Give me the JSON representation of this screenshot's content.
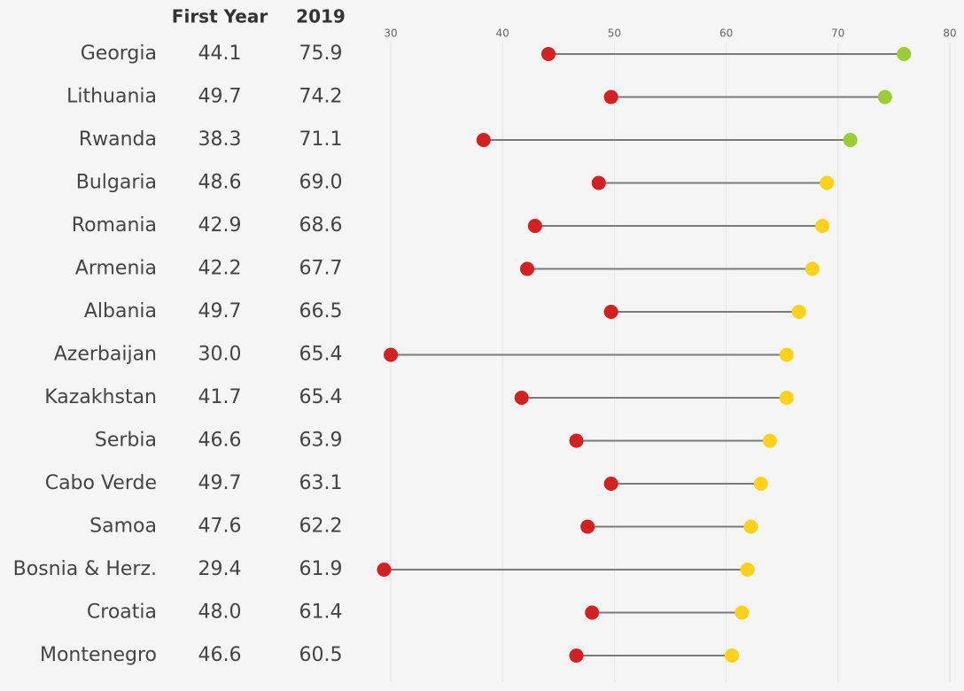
{
  "chart_data": {
    "type": "dumbbell",
    "categories": [
      "Georgia",
      "Lithuania",
      "Rwanda",
      "Bulgaria",
      "Romania",
      "Armenia",
      "Albania",
      "Azerbaijan",
      "Kazakhstan",
      "Serbia",
      "Cabo Verde",
      "Samoa",
      "Bosnia & Herz.",
      "Croatia",
      "Montenegro"
    ],
    "series": [
      {
        "name": "First Year",
        "color": "#d42020",
        "values": [
          44.1,
          49.7,
          38.3,
          48.6,
          42.9,
          42.2,
          49.7,
          30.0,
          41.7,
          46.6,
          49.7,
          47.6,
          29.4,
          48.0,
          46.6
        ],
        "value_labels": [
          "44.1",
          "49.7",
          "38.3",
          "48.6",
          "42.9",
          "42.2",
          "49.7",
          "30.0",
          "41.7",
          "46.6",
          "49.7",
          "47.6",
          "29.4",
          "48.0",
          "46.6"
        ]
      },
      {
        "name": "2019",
        "colors": [
          "#9acd32",
          "#9acd32",
          "#9acd32",
          "#ffd21a",
          "#ffd21a",
          "#ffd21a",
          "#ffd21a",
          "#ffd21a",
          "#ffd21a",
          "#ffd21a",
          "#ffd21a",
          "#ffd21a",
          "#ffd21a",
          "#ffd21a",
          "#ffd21a"
        ],
        "values": [
          75.9,
          74.2,
          71.1,
          69.0,
          68.6,
          67.7,
          66.5,
          65.4,
          65.4,
          63.9,
          63.1,
          62.2,
          61.9,
          61.4,
          60.5
        ],
        "value_labels": [
          "75.9",
          "74.2",
          "71.1",
          "69.0",
          "68.6",
          "67.7",
          "66.5",
          "65.4",
          "65.4",
          "63.9",
          "63.1",
          "62.2",
          "61.9",
          "61.4",
          "60.5"
        ]
      }
    ],
    "connector_color": "#7a7a7a",
    "xlim": [
      30,
      80
    ],
    "xticks": [
      30,
      40,
      50,
      60,
      70,
      80
    ],
    "grid": true
  }
}
